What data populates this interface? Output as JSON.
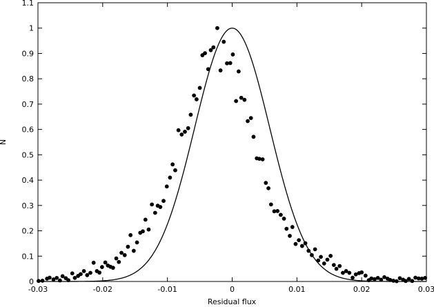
{
  "chart_data": {
    "type": "scatter",
    "title": "",
    "xlabel": "Residual flux",
    "ylabel": "N",
    "xlim": [
      -0.03,
      0.03
    ],
    "ylim": [
      0,
      1.1
    ],
    "x_ticks": [
      -0.03,
      -0.02,
      -0.01,
      0,
      0.01,
      0.02,
      0.03
    ],
    "x_tick_labels": [
      "-0.03",
      "-0.02",
      "-0.01",
      "0",
      "0.01",
      "0.02",
      "0.03"
    ],
    "y_ticks": [
      0,
      0.1,
      0.2,
      0.3,
      0.4,
      0.5,
      0.6,
      0.7,
      0.8,
      0.9,
      1,
      1.1
    ],
    "y_tick_labels": [
      "0",
      "0.1",
      "0.2",
      "0.3",
      "0.4",
      "0.5",
      "0.6",
      "0.7",
      "0.8",
      "0.9",
      "1",
      "1.1"
    ],
    "grid": false,
    "legend": "none",
    "series": [
      {
        "kind": "points",
        "color": "#000000",
        "x": [
          -0.0299,
          -0.0293,
          -0.0286,
          -0.0282,
          -0.0276,
          -0.0271,
          -0.0266,
          -0.0262,
          -0.0257,
          -0.0253,
          -0.0247,
          -0.0243,
          -0.0238,
          -0.0234,
          -0.0229,
          -0.0224,
          -0.0219,
          -0.0214,
          -0.0209,
          -0.0205,
          -0.0201,
          -0.0196,
          -0.0192,
          -0.0188,
          -0.0184,
          -0.0179,
          -0.0175,
          -0.0171,
          -0.0166,
          -0.0161,
          -0.0157,
          -0.0152,
          -0.0147,
          -0.0142,
          -0.0138,
          -0.0134,
          -0.0129,
          -0.0124,
          -0.0119,
          -0.0115,
          -0.0111,
          -0.0106,
          -0.0101,
          -0.0096,
          -0.0092,
          -0.0088,
          -0.0083,
          -0.0078,
          -0.0073,
          -0.0068,
          -0.0064,
          -0.0059,
          -0.0055,
          -0.005,
          -0.0046,
          -0.0042,
          -0.0037,
          -0.0033,
          -0.0029,
          -0.0023,
          -0.0018,
          -0.0013,
          -0.0008,
          -0.0003,
          0.0001,
          0.0006,
          0.001,
          0.0014,
          0.0019,
          0.0024,
          0.0029,
          0.0033,
          0.0038,
          0.0042,
          0.0047,
          0.0052,
          0.0056,
          0.006,
          0.0065,
          0.007,
          0.0075,
          0.008,
          0.0084,
          0.0089,
          0.0093,
          0.0098,
          0.0103,
          0.0108,
          0.0113,
          0.0118,
          0.0123,
          0.0128,
          0.0133,
          0.0137,
          0.0142,
          0.0147,
          0.0152,
          0.0157,
          0.0161,
          0.0166,
          0.0171,
          0.0176,
          0.0181,
          0.0186,
          0.0191,
          0.0196,
          0.02,
          0.0206,
          0.0211,
          0.0215,
          0.022,
          0.0225,
          0.023,
          0.0235,
          0.024,
          0.0244,
          0.0249,
          0.0254,
          0.0259,
          0.0264,
          0.0268,
          0.0273,
          0.0278,
          0.0283,
          0.0288,
          0.0293,
          0.0298
        ],
        "y": [
          0.002,
          0.003,
          0.011,
          0.015,
          0.008,
          0.014,
          0.004,
          0.021,
          0.013,
          0.005,
          0.032,
          0.014,
          0.022,
          0.029,
          0.041,
          0.025,
          0.034,
          0.074,
          0.041,
          0.035,
          0.057,
          0.075,
          0.063,
          0.058,
          0.054,
          0.091,
          0.077,
          0.113,
          0.104,
          0.137,
          0.183,
          0.121,
          0.154,
          0.192,
          0.198,
          0.244,
          0.205,
          0.304,
          0.271,
          0.299,
          0.294,
          0.318,
          0.375,
          0.41,
          0.462,
          0.439,
          0.597,
          0.58,
          0.591,
          0.605,
          0.658,
          0.734,
          0.719,
          0.764,
          0.893,
          0.901,
          0.838,
          0.913,
          0.924,
          1.0,
          0.833,
          0.946,
          0.861,
          0.862,
          0.896,
          0.712,
          0.829,
          0.725,
          0.717,
          0.633,
          0.645,
          0.571,
          0.486,
          0.484,
          0.482,
          0.389,
          0.368,
          0.304,
          0.277,
          0.278,
          0.263,
          0.248,
          0.208,
          0.18,
          0.215,
          0.148,
          0.163,
          0.14,
          0.151,
          0.121,
          0.104,
          0.127,
          0.083,
          0.097,
          0.071,
          0.086,
          0.101,
          0.065,
          0.05,
          0.061,
          0.034,
          0.041,
          0.034,
          0.015,
          0.028,
          0.033,
          0.036,
          0.023,
          0.005,
          0.012,
          0.009,
          0.014,
          0.007,
          0.017,
          0.011,
          0.006,
          0.003,
          0.001,
          0.013,
          0.007,
          0.002,
          0.01,
          0.002,
          0.015,
          0.012,
          0.011,
          0.014
        ]
      },
      {
        "kind": "gaussian_curve",
        "color": "#000000",
        "amplitude": 1.0,
        "mean": 0.0,
        "sigma": 0.0058
      }
    ]
  }
}
